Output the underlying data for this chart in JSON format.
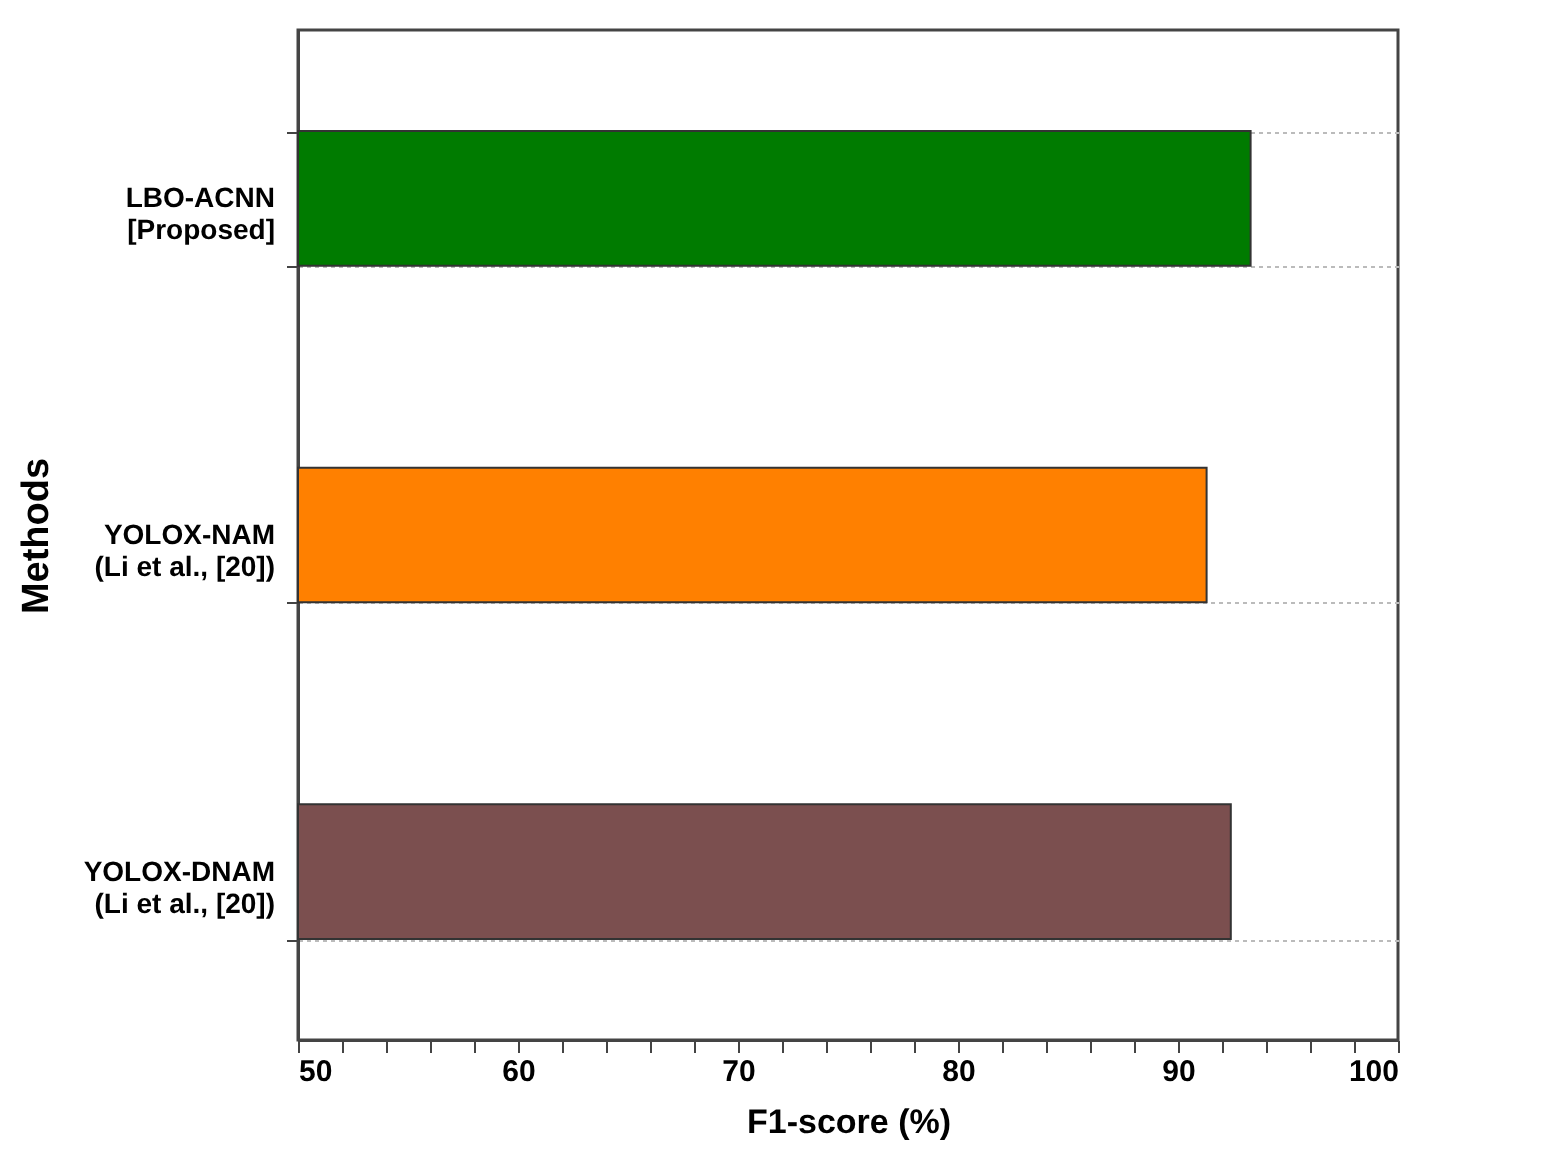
{
  "chart_data": {
    "type": "bar",
    "orientation": "horizontal",
    "categories": [
      "LBO-ACNN [Proposed]",
      "YOLOX-NAM (Li et al., [20])",
      "YOLOX-DNAM (Li et al., [20])"
    ],
    "values": [
      93.3,
      91.3,
      92.4
    ],
    "colors": [
      "#007b00",
      "#ff8000",
      "#7b4f4f"
    ],
    "xlabel": "F1-score (%)",
    "ylabel": "Methods",
    "xlim": [
      50,
      100
    ],
    "xticks": [
      50,
      {
        "value": 52,
        "label": null
      },
      {
        "value": 54,
        "label": null
      },
      {
        "value": 56,
        "label": null
      },
      {
        "value": 58,
        "label": null
      },
      60,
      {
        "value": 62,
        "label": null
      },
      {
        "value": 64,
        "label": null
      },
      {
        "value": 66,
        "label": null
      },
      {
        "value": 68,
        "label": null
      },
      70,
      {
        "value": 72,
        "label": null
      },
      {
        "value": 74,
        "label": null
      },
      {
        "value": 76,
        "label": null
      },
      {
        "value": 78,
        "label": null
      },
      80,
      {
        "value": 82,
        "label": null
      },
      {
        "value": 84,
        "label": null
      },
      {
        "value": 86,
        "label": null
      },
      {
        "value": 88,
        "label": null
      },
      90,
      {
        "value": 92,
        "label": null
      },
      {
        "value": 94,
        "label": null
      },
      {
        "value": 96,
        "label": null
      },
      {
        "value": 98,
        "label": null
      },
      100
    ],
    "grid": "y"
  }
}
